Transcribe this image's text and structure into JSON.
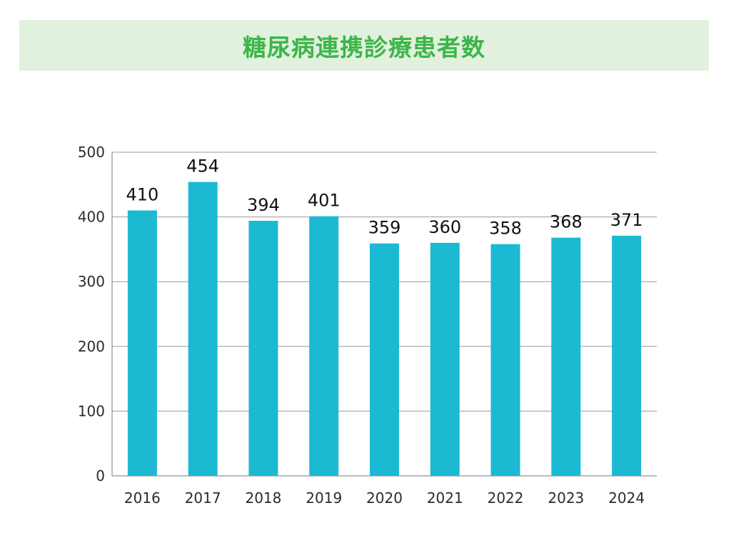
{
  "title": "糖尿病連携診療患者数",
  "colors": {
    "bar": "#1cb9d3",
    "title_text": "#3cb54a",
    "title_bg": "#e1f1dd",
    "grid": "#9a9a9a"
  },
  "chart_data": {
    "type": "bar",
    "title": "糖尿病連携診療患者数",
    "categories": [
      "2016",
      "2017",
      "2018",
      "2019",
      "2020",
      "2021",
      "2022",
      "2023",
      "2024"
    ],
    "values": [
      410,
      454,
      394,
      401,
      359,
      360,
      358,
      368,
      371
    ],
    "value_labels": [
      "410",
      "454",
      "394",
      "401",
      "359",
      "360",
      "358",
      "368",
      "371"
    ],
    "ylim": [
      0,
      500
    ],
    "yticks": [
      0,
      100,
      200,
      300,
      400,
      500
    ],
    "ytick_labels": [
      "0",
      "100",
      "200",
      "300",
      "400",
      "500"
    ],
    "xlabel": "",
    "ylabel": "",
    "grid": true,
    "legend": "none"
  }
}
